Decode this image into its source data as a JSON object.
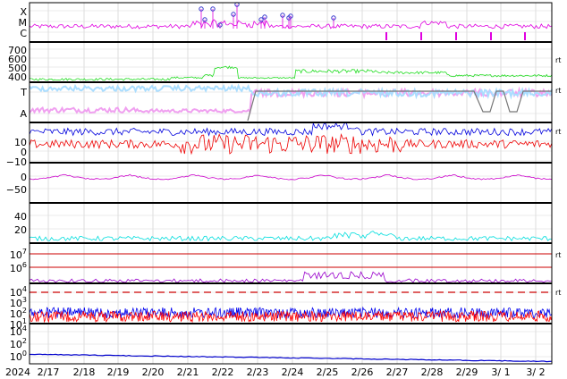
{
  "chart_data": [
    {
      "type": "line",
      "panel": "xray-class",
      "y_tick_labels": [
        "X",
        "M",
        "C"
      ],
      "color": "#e000e0",
      "flare_markers": [
        "2/21",
        "2/21",
        "2/21",
        "2/22",
        "2/22",
        "2/22",
        "2/23",
        "2/23",
        "2/23",
        "2/24",
        "2/24",
        "2/25"
      ],
      "right_label": ""
    },
    {
      "type": "line",
      "panel": "solar-wind-speed",
      "y_tick_labels": [
        "700",
        "600",
        "500",
        "400"
      ],
      "ylim": [
        320,
        760
      ],
      "color": "#22dd22",
      "right_label": "rt"
    },
    {
      "type": "line",
      "panel": "imf-sector",
      "y_tick_labels": [
        "T",
        "A"
      ],
      "colors": [
        "#aaddff",
        "#f0a0f0",
        "#777777"
      ],
      "right_label": "rt"
    },
    {
      "type": "line",
      "panel": "imf-bz",
      "y_tick_labels": [
        "10",
        "0",
        "−10"
      ],
      "ylim": [
        -15,
        13
      ],
      "series": [
        {
          "color": "#0000dd"
        },
        {
          "color": "#ee0000"
        }
      ],
      "right_label": "rt"
    },
    {
      "type": "line",
      "panel": "dst",
      "y_tick_labels": [
        "0",
        "−50"
      ],
      "ylim": [
        -90,
        25
      ],
      "color": "#cc00cc",
      "right_label": ""
    },
    {
      "type": "line",
      "panel": "kp",
      "y_tick_labels": [
        "40",
        "20"
      ],
      "ylim": [
        0,
        52
      ],
      "color": "#00dddd",
      "right_label": ""
    },
    {
      "type": "line",
      "panel": "proton-flux",
      "y_tick_labels": [
        {
          "base": "10",
          "exp": "7"
        },
        {
          "base": "10",
          "exp": "6"
        }
      ],
      "threshold_color": "#cc0000",
      "color": "#9900cc",
      "right_label": "rt"
    },
    {
      "type": "line",
      "panel": "electron-flux",
      "y_tick_labels": [
        {
          "base": "10",
          "exp": "4"
        },
        {
          "base": "10",
          "exp": "3"
        },
        {
          "base": "10",
          "exp": "2"
        },
        {
          "base": "10",
          "exp": "1"
        }
      ],
      "series": [
        {
          "color": "#0000ee"
        },
        {
          "color": "#ff0000"
        }
      ],
      "threshold_color": "#cc0000",
      "right_label": "rt"
    },
    {
      "type": "line",
      "panel": "neutron",
      "y_tick_labels": [
        {
          "base": "10",
          "exp": "4"
        },
        {
          "base": "10",
          "exp": "2"
        },
        {
          "base": "10",
          "exp": "0"
        }
      ],
      "color": "#0000cc",
      "right_label": ""
    }
  ],
  "x_axis": {
    "year_label": "2024",
    "tick_labels": [
      "2/17",
      "2/18",
      "2/19",
      "2/20",
      "2/21",
      "2/22",
      "2/23",
      "2/24",
      "2/25",
      "2/26",
      "2/27",
      "2/28",
      "2/29",
      "3/ 1",
      "3/ 2"
    ]
  }
}
